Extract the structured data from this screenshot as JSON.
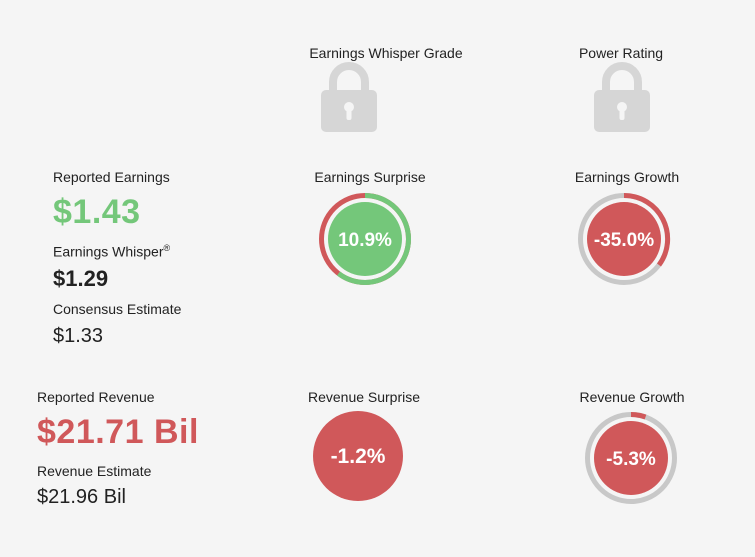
{
  "grades": {
    "whisper_grade_label": "Earnings Whisper Grade",
    "power_rating_label": "Power Rating",
    "lock_icon": "lock-icon"
  },
  "earnings": {
    "reported_label": "Reported Earnings",
    "reported_value": "$1.43",
    "whisper_label": "Earnings Whisper",
    "whisper_mark": "®",
    "whisper_value": "$1.29",
    "consensus_label": "Consensus Estimate",
    "consensus_value": "$1.33",
    "surprise_label": "Earnings Surprise",
    "surprise_value": "10.9%",
    "growth_label": "Earnings Growth",
    "growth_value": "-35.0%"
  },
  "revenue": {
    "reported_label": "Reported Revenue",
    "reported_value": "$21.71 Bil",
    "estimate_label": "Revenue Estimate",
    "estimate_value": "$21.96 Bil",
    "surprise_label": "Revenue Surprise",
    "surprise_value": "-1.2%",
    "growth_label": "Revenue Growth",
    "growth_value": "-5.3%"
  },
  "colors": {
    "positive": "#74c77a",
    "negative": "#d0585a",
    "ring_track": "#c8c8c8",
    "lock": "#d6d6d6"
  }
}
